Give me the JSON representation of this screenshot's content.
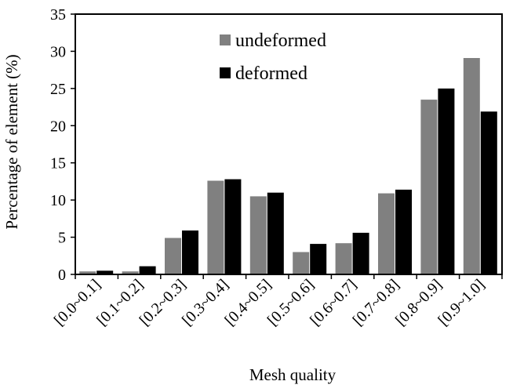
{
  "chart_data": {
    "type": "bar",
    "categories": [
      "[0.0~0.1]",
      "[0.1~0.2]",
      "[0.2~0.3]",
      "[0.3~0.4]",
      "[0.4~0.5]",
      "[0.5~0.6]",
      "[0.6~0.7]",
      "[0.7~0.8]",
      "[0.8~0.9]",
      "[0.9~1.0]"
    ],
    "series": [
      {
        "name": "undeformed",
        "color": "#808080",
        "values": [
          0.4,
          0.4,
          4.9,
          12.6,
          10.5,
          3.0,
          4.2,
          10.9,
          23.5,
          29.1
        ]
      },
      {
        "name": "deformed",
        "color": "#000000",
        "values": [
          0.5,
          1.1,
          5.9,
          12.8,
          11.0,
          4.1,
          5.6,
          11.4,
          25.0,
          21.9
        ]
      }
    ],
    "xlabel": "Mesh quality",
    "ylabel": "Percentage of element (%)",
    "ylim": [
      0,
      35
    ],
    "yticks": [
      0,
      5,
      10,
      15,
      20,
      25,
      30,
      35
    ],
    "grid": false,
    "legend_position": "top-center"
  }
}
